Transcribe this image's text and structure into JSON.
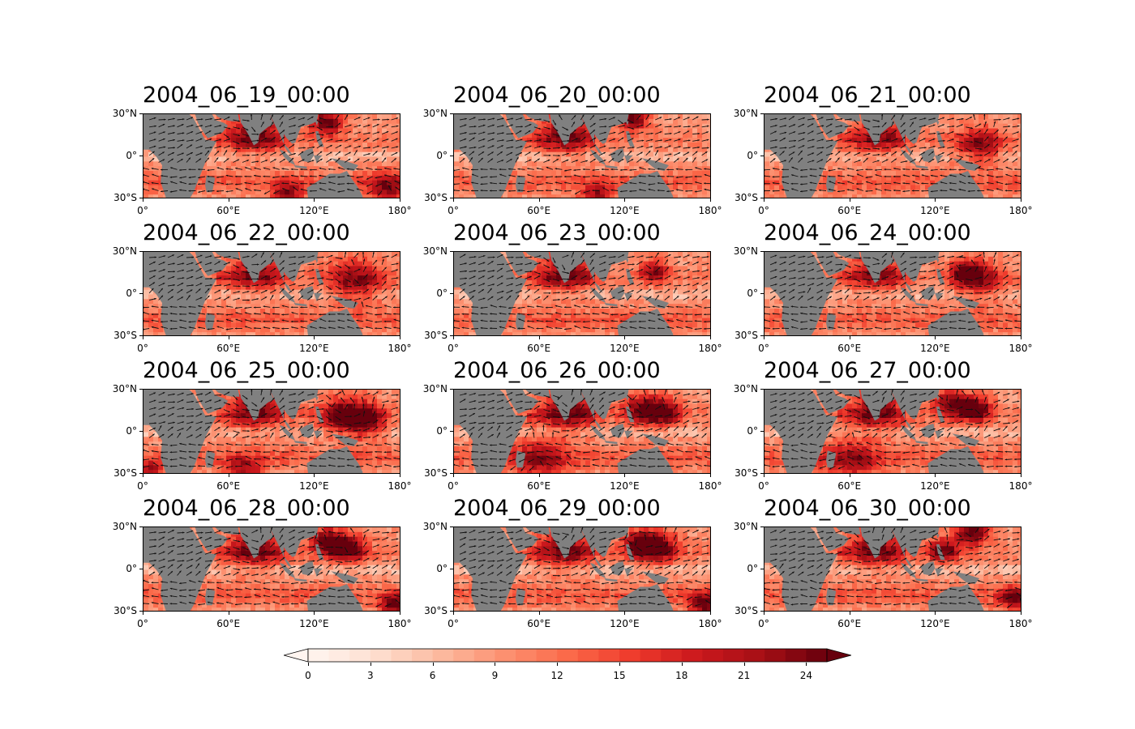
{
  "panels": [
    {
      "title": "2004_06_19_00:00"
    },
    {
      "title": "2004_06_20_00:00"
    },
    {
      "title": "2004_06_21_00:00"
    },
    {
      "title": "2004_06_22_00:00"
    },
    {
      "title": "2004_06_23_00:00"
    },
    {
      "title": "2004_06_24_00:00"
    },
    {
      "title": "2004_06_25_00:00"
    },
    {
      "title": "2004_06_26_00:00"
    },
    {
      "title": "2004_06_27_00:00"
    },
    {
      "title": "2004_06_28_00:00"
    },
    {
      "title": "2004_06_29_00:00"
    },
    {
      "title": "2004_06_30_00:00"
    }
  ],
  "axes": {
    "lat_labels": [
      "30°N",
      "0°",
      "30°S"
    ],
    "lon_labels": [
      "0°",
      "60°E",
      "120°E",
      "180°"
    ]
  },
  "colorbar": {
    "min": 0,
    "max": 25,
    "tick_labels": [
      "0",
      "3",
      "6",
      "9",
      "12",
      "15",
      "18",
      "21",
      "24"
    ],
    "extend": "both",
    "colors": [
      "#fff5f0",
      "#fee0d2",
      "#fcbba1",
      "#fc9272",
      "#fb6a4a",
      "#ef3b2c",
      "#cb181d",
      "#a50f15",
      "#67000d"
    ]
  },
  "land_color": "#808080"
}
